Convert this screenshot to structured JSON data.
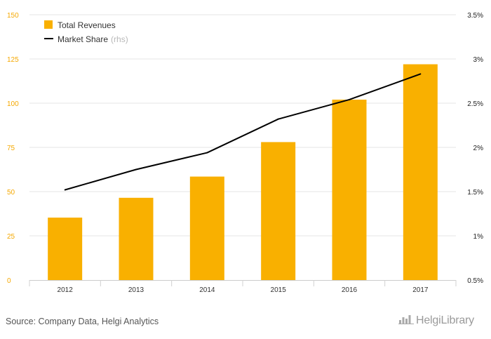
{
  "chart_data": {
    "type": "bar+line",
    "categories": [
      "2012",
      "2013",
      "2014",
      "2015",
      "2016",
      "2017"
    ],
    "series": [
      {
        "name": "Total Revenues",
        "type": "bar",
        "axis": "left",
        "values": [
          35.3,
          46.5,
          58.5,
          78.0,
          102.0,
          122.0
        ]
      },
      {
        "name": "Market Share",
        "type": "line",
        "axis": "right",
        "values": [
          1.52,
          1.75,
          1.94,
          2.32,
          2.54,
          2.83
        ]
      }
    ],
    "y_left": {
      "min": 0,
      "max": 150,
      "ticks": [
        "0",
        "25",
        "50",
        "75",
        "100",
        "125",
        "150"
      ]
    },
    "y_right": {
      "min": 0.5,
      "max": 3.5,
      "ticks": [
        "0.5%",
        "1%",
        "1.5%",
        "2%",
        "2.5%",
        "3%",
        "3.5%"
      ]
    },
    "legend": {
      "position": "top-left",
      "items": [
        {
          "label": "Total Revenues",
          "suffix": ""
        },
        {
          "label": "Market Share",
          "suffix": "(rhs)"
        }
      ]
    },
    "grid": "horizontal",
    "colors": {
      "bar": "#f9b000",
      "line": "#000000",
      "left_axis": "#f5a800",
      "grid": "#e6e6e6"
    }
  },
  "footer": {
    "source": "Source: Company Data, Helgi Analytics",
    "brand": "HelgiLibrary",
    "brand_icon": "chart-logo-icon"
  }
}
